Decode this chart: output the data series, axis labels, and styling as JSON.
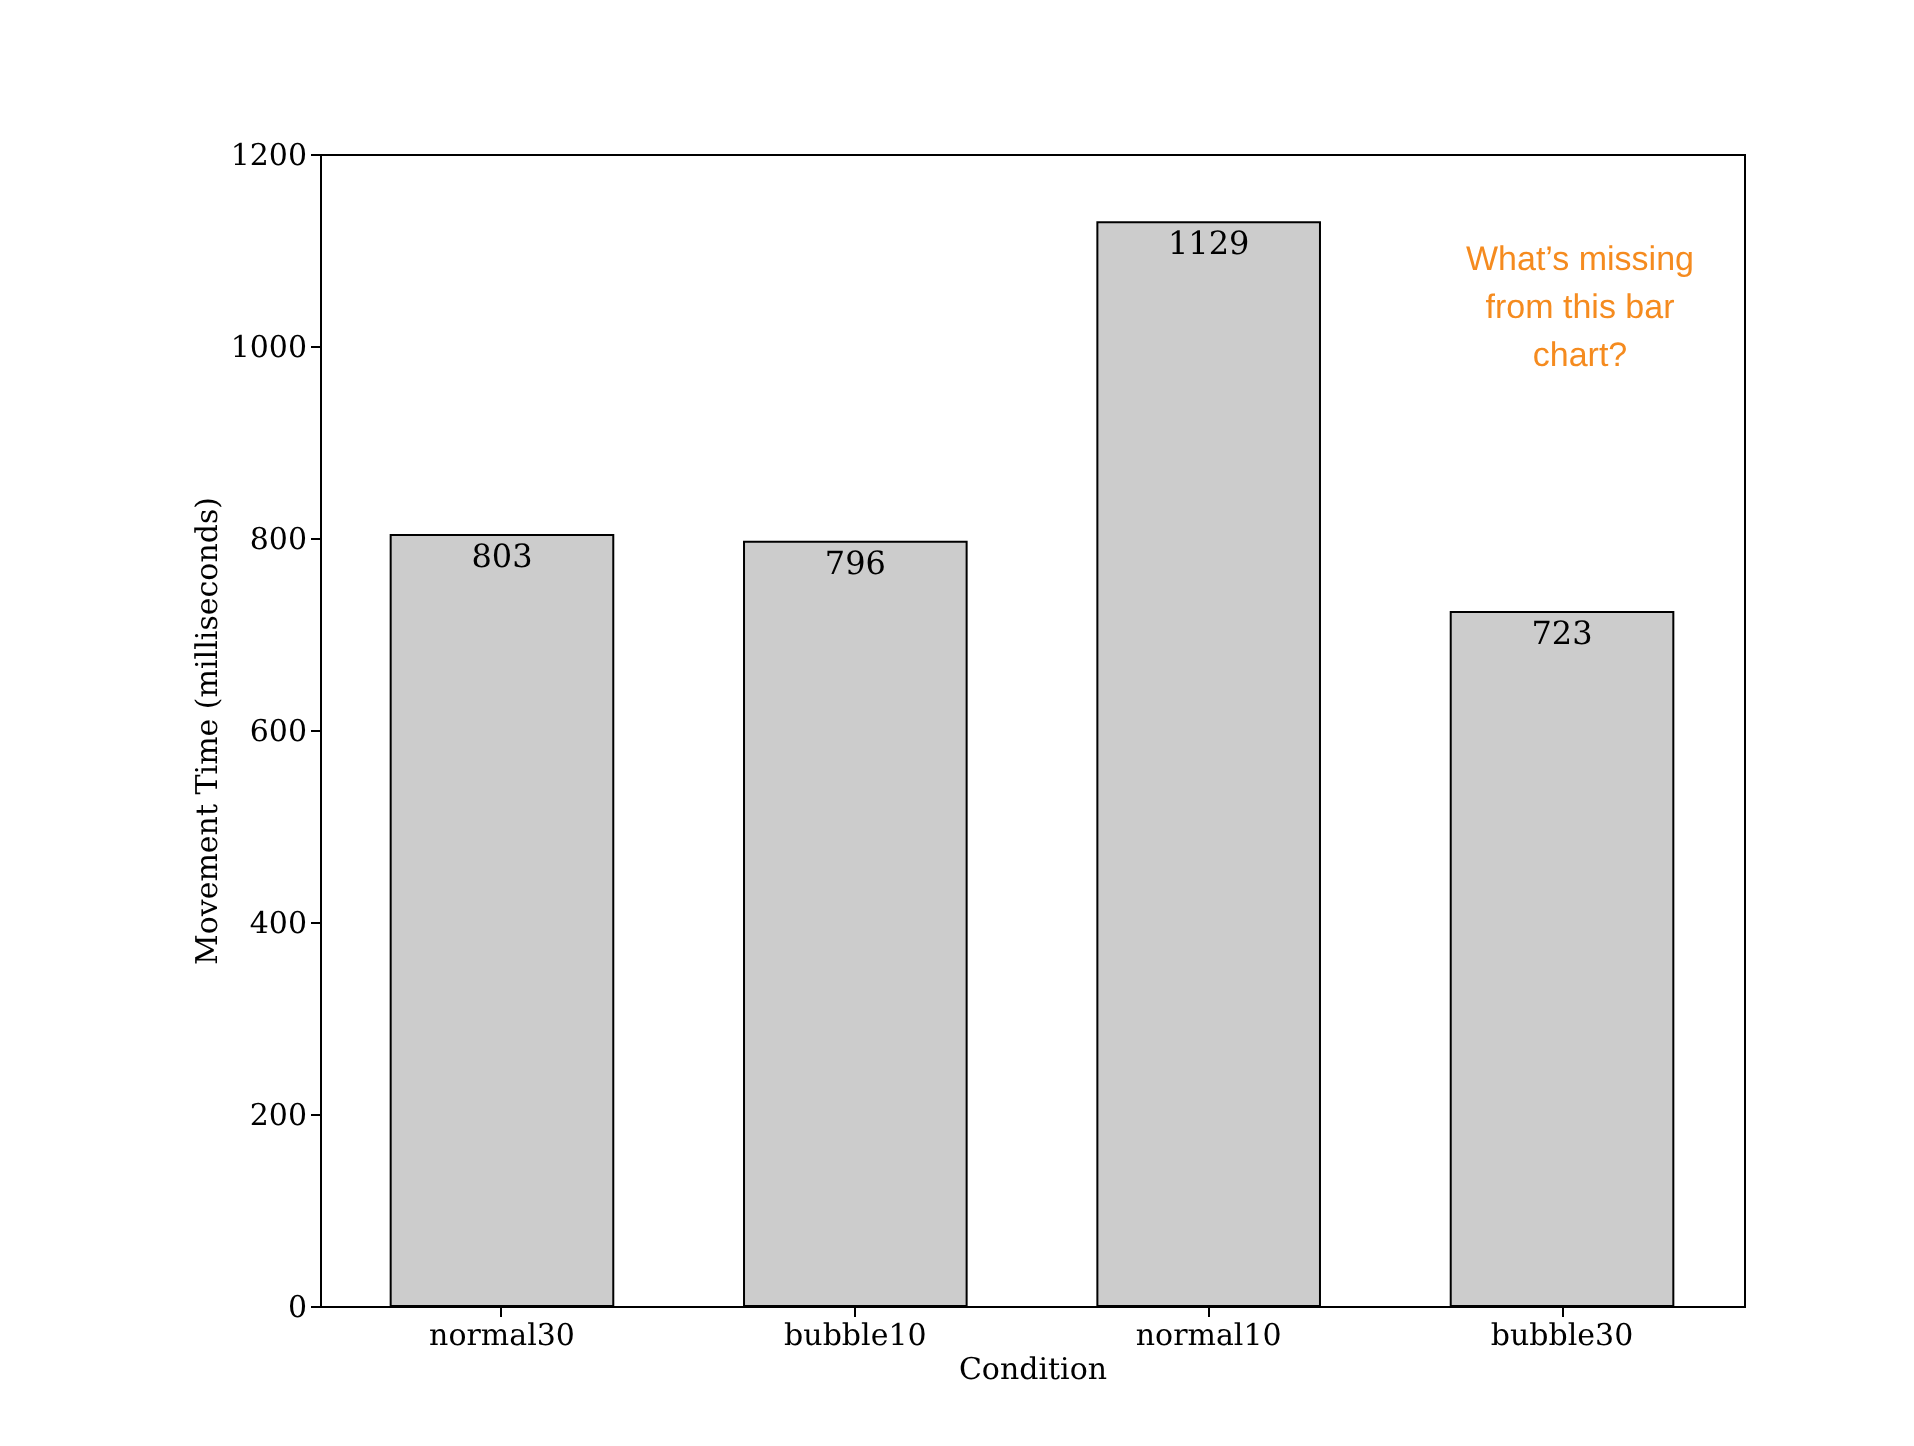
{
  "chart_data": {
    "type": "bar",
    "xlabel": "Condition",
    "ylabel": "Movement Time (milliseconds)",
    "categories": [
      "normal30",
      "bubble10",
      "normal10",
      "bubble30"
    ],
    "values": [
      803,
      796,
      1129,
      723
    ],
    "color": "#cccccc",
    "ylim": [
      0,
      1200
    ],
    "yticks": [
      0,
      200,
      400,
      600,
      800,
      1000,
      1200
    ],
    "grid": false,
    "data_labels": true,
    "annotations": [
      "What’s missing\nfrom this bar\nchart?"
    ]
  }
}
